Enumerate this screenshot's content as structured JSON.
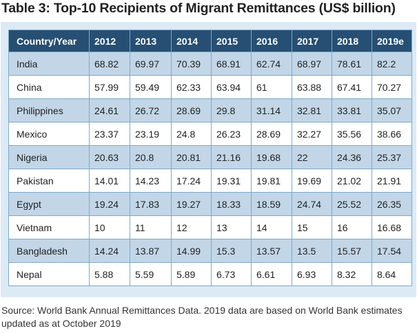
{
  "title": "Table 3: Top-10 Recipients of Migrant Remittances (US$ billion)",
  "table": {
    "headers": [
      "Country/Year",
      "2012",
      "2013",
      "2014",
      "2015",
      "2016",
      "2017",
      "2018",
      "2019e"
    ],
    "rows": [
      [
        "India",
        "68.82",
        "69.97",
        "70.39",
        "68.91",
        "62.74",
        "68.97",
        "78.61",
        "82.2"
      ],
      [
        "China",
        "57.99",
        "59.49",
        "62.33",
        "63.94",
        "61",
        "63.88",
        "67.41",
        "70.27"
      ],
      [
        "Philippines",
        "24.61",
        "26.72",
        "28.69",
        "29.8",
        "31.14",
        "32.81",
        "33.81",
        "35.07"
      ],
      [
        "Mexico",
        "23.37",
        "23.19",
        "24.8",
        "26.23",
        "28.69",
        "32.27",
        "35.56",
        "38.66"
      ],
      [
        "Nigeria",
        "20.63",
        "20.8",
        "20.81",
        "21.16",
        "19.68",
        "22",
        "24.36",
        "25.37"
      ],
      [
        "Pakistan",
        "14.01",
        "14.23",
        "17.24",
        "19.31",
        "19.81",
        "19.69",
        "21.02",
        "21.91"
      ],
      [
        "Egypt",
        "19.24",
        "17.83",
        "19.27",
        "18.33",
        "18.59",
        "24.74",
        "25.52",
        "26.35"
      ],
      [
        "Vietnam",
        "10",
        "11",
        "12",
        "13",
        "14",
        "15",
        "16",
        "16.68"
      ],
      [
        "Bangladesh",
        "14.24",
        "13.87",
        "14.99",
        "15.3",
        "13.57",
        "13.5",
        "15.57",
        "17.54"
      ],
      [
        "Nepal",
        "5.88",
        "5.59",
        "5.89",
        "6.73",
        "6.61",
        "6.93",
        "8.32",
        "8.64"
      ]
    ]
  },
  "source": "Source: World Bank Annual Remittances Data. 2019 data are based on World Bank estimates updated as at October 2019",
  "colors": {
    "header_bg": "#264f73",
    "band_bg": "#c2d6e7",
    "frame_bg": "#dceaf5",
    "grid": "#7ea8c9"
  }
}
